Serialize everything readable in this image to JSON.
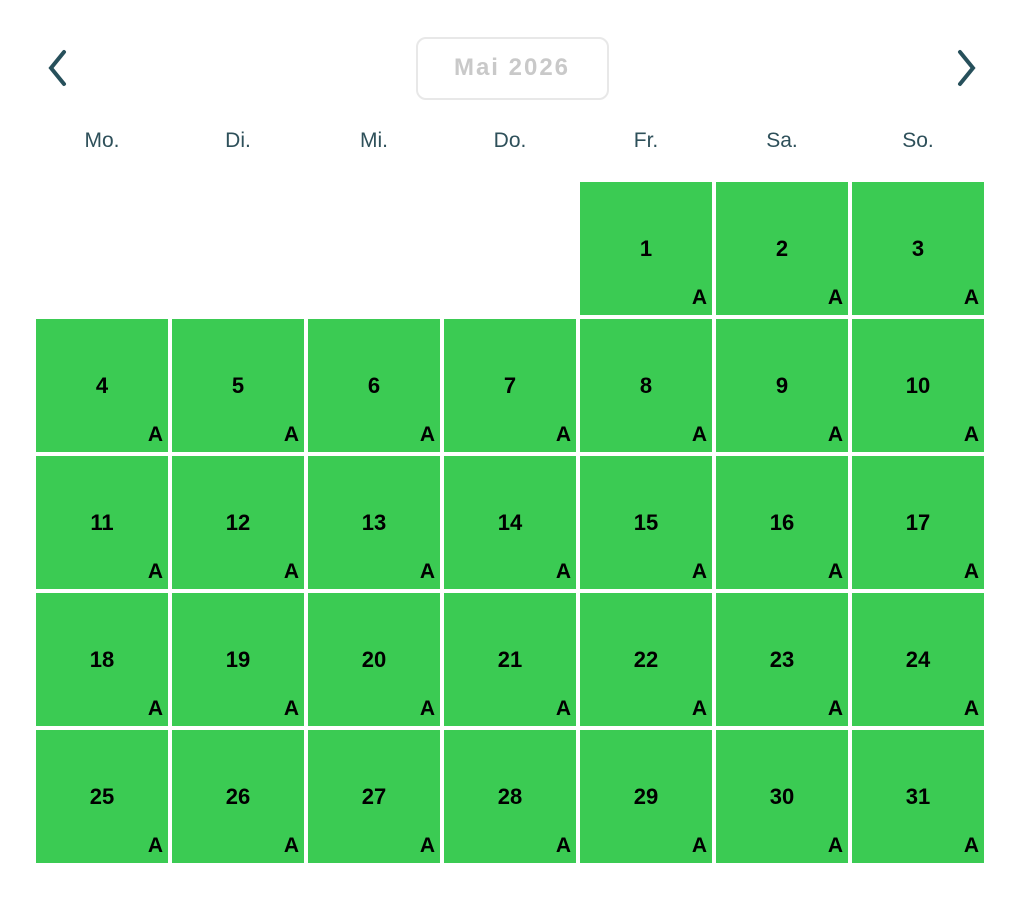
{
  "nav": {
    "prev_icon": "chevron-left",
    "next_icon": "chevron-right",
    "month_label": "Mai 2026"
  },
  "weekdays": [
    "Mo.",
    "Di.",
    "Mi.",
    "Do.",
    "Fr.",
    "Sa.",
    "So."
  ],
  "calendar": {
    "month_label": "Mai 2026",
    "leading_empty_cells": 4,
    "availability_badge": "A",
    "cells": [
      {
        "empty": true
      },
      {
        "empty": true
      },
      {
        "empty": true
      },
      {
        "empty": true
      },
      {
        "empty": false,
        "day": "1",
        "badge": "A",
        "status": "available"
      },
      {
        "empty": false,
        "day": "2",
        "badge": "A",
        "status": "available"
      },
      {
        "empty": false,
        "day": "3",
        "badge": "A",
        "status": "available"
      },
      {
        "empty": false,
        "day": "4",
        "badge": "A",
        "status": "available"
      },
      {
        "empty": false,
        "day": "5",
        "badge": "A",
        "status": "available"
      },
      {
        "empty": false,
        "day": "6",
        "badge": "A",
        "status": "available"
      },
      {
        "empty": false,
        "day": "7",
        "badge": "A",
        "status": "available"
      },
      {
        "empty": false,
        "day": "8",
        "badge": "A",
        "status": "available"
      },
      {
        "empty": false,
        "day": "9",
        "badge": "A",
        "status": "available"
      },
      {
        "empty": false,
        "day": "10",
        "badge": "A",
        "status": "available"
      },
      {
        "empty": false,
        "day": "11",
        "badge": "A",
        "status": "available"
      },
      {
        "empty": false,
        "day": "12",
        "badge": "A",
        "status": "available"
      },
      {
        "empty": false,
        "day": "13",
        "badge": "A",
        "status": "available"
      },
      {
        "empty": false,
        "day": "14",
        "badge": "A",
        "status": "available"
      },
      {
        "empty": false,
        "day": "15",
        "badge": "A",
        "status": "available"
      },
      {
        "empty": false,
        "day": "16",
        "badge": "A",
        "status": "available"
      },
      {
        "empty": false,
        "day": "17",
        "badge": "A",
        "status": "available"
      },
      {
        "empty": false,
        "day": "18",
        "badge": "A",
        "status": "available"
      },
      {
        "empty": false,
        "day": "19",
        "badge": "A",
        "status": "available"
      },
      {
        "empty": false,
        "day": "20",
        "badge": "A",
        "status": "available"
      },
      {
        "empty": false,
        "day": "21",
        "badge": "A",
        "status": "available"
      },
      {
        "empty": false,
        "day": "22",
        "badge": "A",
        "status": "available"
      },
      {
        "empty": false,
        "day": "23",
        "badge": "A",
        "status": "available"
      },
      {
        "empty": false,
        "day": "24",
        "badge": "A",
        "status": "available"
      },
      {
        "empty": false,
        "day": "25",
        "badge": "A",
        "status": "available"
      },
      {
        "empty": false,
        "day": "26",
        "badge": "A",
        "status": "available"
      },
      {
        "empty": false,
        "day": "27",
        "badge": "A",
        "status": "available"
      },
      {
        "empty": false,
        "day": "28",
        "badge": "A",
        "status": "available"
      },
      {
        "empty": false,
        "day": "29",
        "badge": "A",
        "status": "available"
      },
      {
        "empty": false,
        "day": "30",
        "badge": "A",
        "status": "available"
      },
      {
        "empty": false,
        "day": "31",
        "badge": "A",
        "status": "available"
      }
    ]
  },
  "colors": {
    "cell-green": "#3bcb53",
    "day-text": "#000000",
    "weekday-text": "#2e505a",
    "chevron-color": "#27505b",
    "month-text": "#c9c9c9",
    "month-border": "#e8e8e8"
  }
}
